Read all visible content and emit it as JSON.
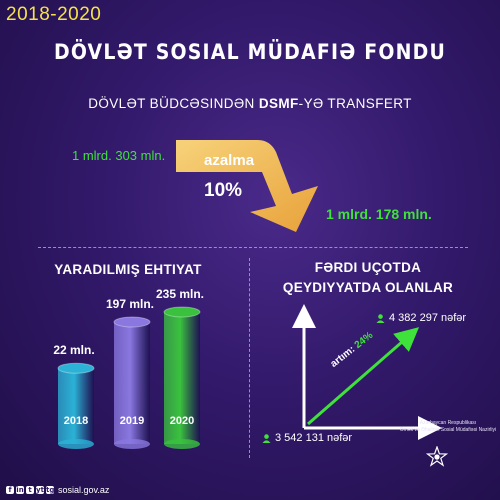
{
  "header": {
    "years": "2018-2020",
    "title": "DÖVLƏT SOSIAL MÜDAFIƏ FONDU",
    "subtitle_pre": "DÖVLƏT BÜDCƏSINDƏN ",
    "subtitle_bold": "DSMF",
    "subtitle_post": "-YƏ TRANSFERT"
  },
  "transfer": {
    "from_amount": "1 mlrd. 303 mln.",
    "to_amount": "1 mlrd. 178 mln.",
    "change_label": "azalma",
    "change_percent": "10%",
    "colors": {
      "arrow": "#f4c45c",
      "arrow_dark": "#e29a2e",
      "amount": "#3ee23a"
    }
  },
  "reserves": {
    "heading": "YARADILMIŞ EHTIYAT",
    "chart_data": {
      "type": "bar",
      "categories": [
        "2018",
        "2019",
        "2020"
      ],
      "values": [
        22,
        197,
        235
      ],
      "value_labels": [
        "22 mln.",
        "197 mln.",
        "235 mln."
      ]
    },
    "colors": [
      "#2bb2d6",
      "#8a78e0",
      "#3ac23e"
    ]
  },
  "registered": {
    "heading_line1": "FƏRDI UÇOTDA",
    "heading_line2": "QEYDIYYATDA OLANLAR",
    "start_value": "3 542 131 nəfər",
    "end_value": "4 382 297 nəfər",
    "growth_label": "artım: ",
    "growth_percent": "24%",
    "person_icon": "person-icon"
  },
  "footer": {
    "social_icons": [
      "f",
      "in",
      "t",
      "yt",
      "tg"
    ],
    "website": "sosial.gov.az",
    "ministry_line1": "Azərbaycan Respublikası",
    "ministry_line2": "Əmək və Əhalinin Sosial Müdafiəsi Nazirliyi"
  }
}
